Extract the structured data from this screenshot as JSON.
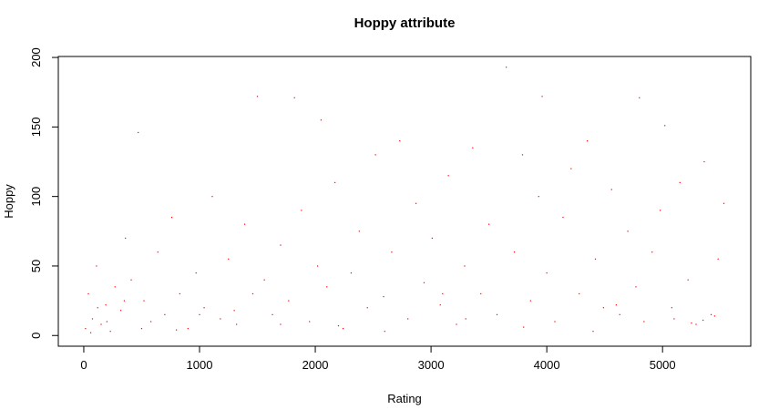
{
  "chart_data": {
    "type": "scatter",
    "title": "Hoppy attribute",
    "x_label": "Rating",
    "y_label": "Hoppy",
    "color": "#ff0000",
    "xlim": [
      -220,
      5762
    ],
    "ylim": [
      -7.7,
      200.7
    ],
    "xticks": [
      0,
      1000,
      2000,
      3000,
      4000,
      5000
    ],
    "yticks": [
      0,
      50,
      100,
      150,
      200
    ],
    "x": [
      15,
      40,
      75,
      110,
      150,
      190,
      230,
      270,
      320,
      360,
      410,
      470,
      520,
      580,
      640,
      700,
      760,
      830,
      900,
      970,
      1040,
      1110,
      1180,
      1250,
      1320,
      1390,
      1460,
      1500,
      1560,
      1630,
      1700,
      1770,
      1820,
      1880,
      1950,
      2020,
      2050,
      2100,
      2170,
      2240,
      2310,
      2380,
      2450,
      2520,
      2590,
      2660,
      2730,
      2800,
      2870,
      2940,
      3010,
      3080,
      3150,
      3220,
      3290,
      3360,
      3430,
      3500,
      3570,
      3650,
      3720,
      3790,
      3860,
      3930,
      3960,
      4000,
      4070,
      4140,
      4210,
      4280,
      4350,
      4420,
      4490,
      4560,
      4630,
      4700,
      4770,
      4800,
      4840,
      4910,
      4980,
      5020,
      5080,
      5150,
      5220,
      5290,
      5360,
      5420,
      5480,
      5530,
      60,
      200,
      350,
      800,
      1300,
      2200,
      3300,
      4400,
      5250,
      5450,
      120,
      500,
      1000,
      1700,
      2600,
      3100,
      3800,
      4600,
      5100,
      5350
    ],
    "values": [
      5,
      30,
      12,
      50,
      8,
      22,
      3,
      35,
      18,
      70,
      40,
      146,
      25,
      10,
      60,
      15,
      85,
      30,
      5,
      45,
      20,
      100,
      12,
      55,
      8,
      80,
      30,
      172,
      40,
      15,
      65,
      25,
      171,
      90,
      10,
      50,
      155,
      35,
      110,
      5,
      45,
      75,
      20,
      130,
      28,
      60,
      140,
      12,
      95,
      38,
      70,
      22,
      115,
      8,
      50,
      135,
      30,
      80,
      15,
      193,
      60,
      130,
      25,
      100,
      172,
      45,
      10,
      85,
      120,
      30,
      140,
      55,
      20,
      105,
      15,
      75,
      35,
      171,
      10,
      60,
      90,
      151,
      20,
      110,
      40,
      8,
      125,
      15,
      55,
      95,
      2,
      10,
      25,
      4,
      18,
      7,
      12,
      3,
      9,
      14,
      20,
      5,
      15,
      8,
      3,
      30,
      6,
      22,
      12,
      11
    ]
  }
}
